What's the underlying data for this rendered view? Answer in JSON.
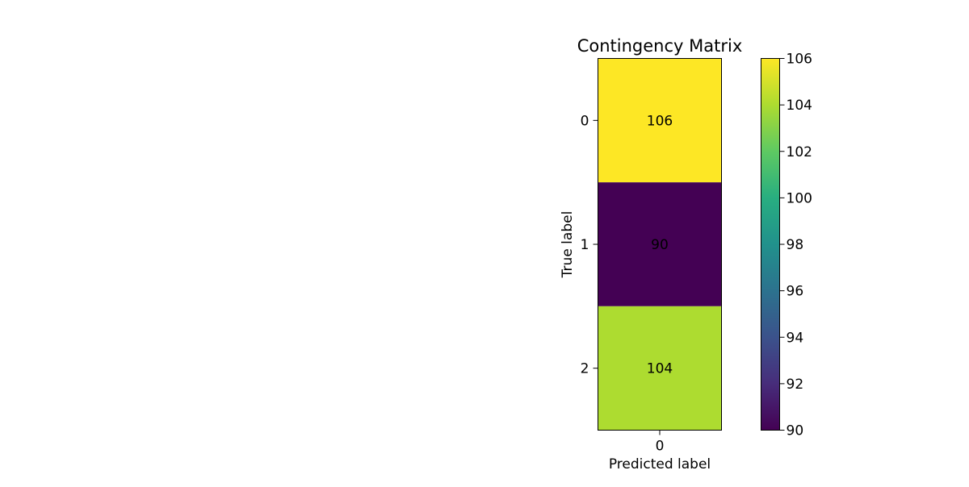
{
  "chart_data": {
    "type": "heatmap",
    "title": "Contingency Matrix",
    "xlabel": "Predicted label",
    "ylabel": "True label",
    "x_categories": [
      "0"
    ],
    "y_categories": [
      "0",
      "1",
      "2"
    ],
    "values": [
      [
        106
      ],
      [
        90
      ],
      [
        104
      ]
    ],
    "cell_labels": [
      "106",
      "90",
      "104"
    ],
    "colormap": "viridis",
    "colorbar": {
      "range": [
        90,
        106
      ],
      "ticks": [
        90,
        92,
        94,
        96,
        98,
        100,
        102,
        104,
        106
      ],
      "tick_labels": [
        "90",
        "92",
        "94",
        "96",
        "98",
        "100",
        "102",
        "104",
        "106"
      ]
    },
    "colors": {
      "cell_0": "#fde725",
      "cell_1": "#440154",
      "cell_2": "#addc30"
    }
  }
}
